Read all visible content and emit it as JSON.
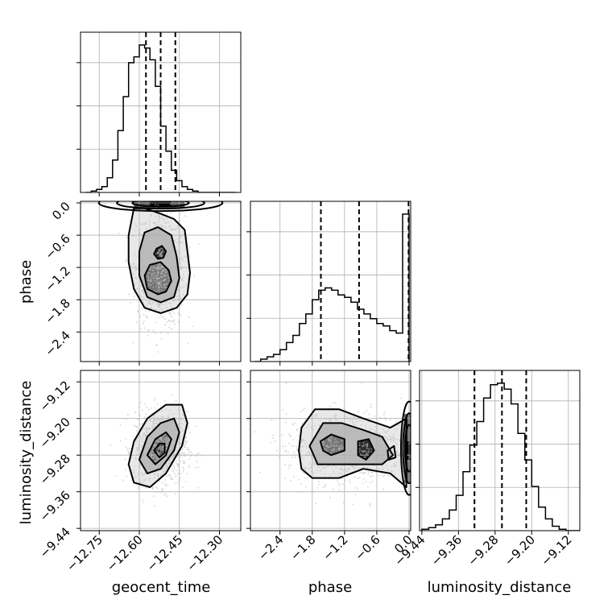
{
  "chart_data": {
    "type": "corner",
    "parameters": [
      "geocent_time",
      "phase",
      "luminosity_distance"
    ],
    "axis_labels": {
      "x": [
        "geocent_time",
        "phase",
        "luminosity_distance"
      ],
      "y": [
        "phase",
        "luminosity_distance"
      ]
    },
    "ranges": {
      "geocent_time": [
        -12.82,
        -12.22
      ],
      "phase": [
        -2.95,
        0.03
      ],
      "luminosity_distance": [
        -9.445,
        -9.095
      ]
    },
    "ticks": {
      "geocent_time": [
        {
          "v": -12.75,
          "label": "−12.75"
        },
        {
          "v": -12.6,
          "label": "−12.60"
        },
        {
          "v": -12.45,
          "label": "−12.45"
        },
        {
          "v": -12.3,
          "label": "−12.30"
        }
      ],
      "phase": [
        {
          "v": -2.4,
          "label": "−2.4"
        },
        {
          "v": -1.8,
          "label": "−1.8"
        },
        {
          "v": -1.2,
          "label": "−1.2"
        },
        {
          "v": -0.6,
          "label": "−0.6"
        },
        {
          "v": 0.0,
          "label": "0.0"
        }
      ],
      "luminosity_distance": [
        {
          "v": -9.44,
          "label": "−9.44"
        },
        {
          "v": -9.36,
          "label": "−9.36"
        },
        {
          "v": -9.28,
          "label": "−9.28"
        },
        {
          "v": -9.2,
          "label": "−9.20"
        },
        {
          "v": -9.12,
          "label": "−9.12"
        }
      ]
    },
    "quantiles": {
      "geocent_time": [
        -12.575,
        -12.52,
        -12.465
      ],
      "phase": [
        -1.64,
        -0.93,
        -0.01
      ],
      "luminosity_distance": [
        -9.325,
        -9.265,
        -9.212
      ]
    },
    "histograms": {
      "geocent_time": {
        "edges": [
          -12.8,
          -12.78,
          -12.76,
          -12.74,
          -12.72,
          -12.7,
          -12.68,
          -12.66,
          -12.64,
          -12.62,
          -12.6,
          -12.58,
          -12.56,
          -12.54,
          -12.52,
          -12.5,
          -12.48,
          -12.46,
          -12.44,
          -12.42,
          -12.4,
          -12.38,
          -12.36,
          -12.34,
          -12.32,
          -12.3,
          -12.28,
          -12.26,
          -12.24
        ],
        "counts": [
          0,
          1,
          2,
          4,
          10,
          22,
          42,
          65,
          88,
          92,
          100,
          98,
          90,
          72,
          45,
          28,
          15,
          8,
          4,
          2,
          1,
          0,
          0,
          0,
          0,
          0,
          0,
          0
        ]
      },
      "phase": {
        "edges": [
          -2.88,
          -2.76,
          -2.64,
          -2.52,
          -2.4,
          -2.28,
          -2.16,
          -2.04,
          -1.92,
          -1.8,
          -1.68,
          -1.56,
          -1.44,
          -1.32,
          -1.2,
          -1.08,
          -0.96,
          -0.84,
          -0.72,
          -0.6,
          -0.48,
          -0.36,
          -0.24,
          -0.12,
          0.0
        ],
        "counts": [
          0,
          1,
          2,
          3,
          5,
          8,
          11,
          16,
          20,
          26,
          30,
          31,
          30,
          28,
          27,
          25,
          22,
          20,
          18,
          16,
          15,
          13,
          12,
          62
        ]
      },
      "luminosity_distance": {
        "edges": [
          -9.44,
          -9.425,
          -9.41,
          -9.395,
          -9.38,
          -9.365,
          -9.35,
          -9.335,
          -9.32,
          -9.305,
          -9.29,
          -9.275,
          -9.26,
          -9.245,
          -9.23,
          -9.215,
          -9.2,
          -9.185,
          -9.17,
          -9.155,
          -9.14,
          -9.125,
          -9.11,
          -9.095
        ],
        "counts": [
          1,
          2,
          4,
          8,
          14,
          24,
          40,
          58,
          74,
          90,
          99,
          100,
          96,
          86,
          66,
          48,
          30,
          16,
          8,
          3,
          1,
          0,
          0
        ]
      }
    },
    "contours": {
      "phase_vs_geocent_time": {
        "scatter_center": [
          -12.52,
          -1.2
        ],
        "scatter_spread": [
          0.045,
          0.55
        ],
        "levels": [
          [
            [
              -12.62,
              -0.1
            ],
            [
              -12.58,
              -0.1
            ],
            [
              -12.52,
              -0.2
            ],
            [
              -12.47,
              -0.3
            ],
            [
              -12.43,
              -0.5
            ],
            [
              -12.42,
              -0.9
            ],
            [
              -12.41,
              -1.3
            ],
            [
              -12.42,
              -1.7
            ],
            [
              -12.46,
              -1.95
            ],
            [
              -12.52,
              -2.05
            ],
            [
              -12.58,
              -1.95
            ],
            [
              -12.62,
              -1.6
            ],
            [
              -12.64,
              -1.1
            ],
            [
              -12.64,
              -0.6
            ]
          ],
          [
            [
              -12.58,
              -0.55
            ],
            [
              -12.53,
              -0.45
            ],
            [
              -12.48,
              -0.6
            ],
            [
              -12.46,
              -1.0
            ],
            [
              -12.45,
              -1.4
            ],
            [
              -12.47,
              -1.75
            ],
            [
              -12.52,
              -1.85
            ],
            [
              -12.57,
              -1.75
            ],
            [
              -12.6,
              -1.35
            ],
            [
              -12.6,
              -0.9
            ]
          ],
          [
            [
              -12.56,
              -1.15
            ],
            [
              -12.52,
              -1.1
            ],
            [
              -12.49,
              -1.25
            ],
            [
              -12.48,
              -1.45
            ],
            [
              -12.5,
              -1.65
            ],
            [
              -12.53,
              -1.7
            ],
            [
              -12.57,
              -1.6
            ],
            [
              -12.58,
              -1.35
            ]
          ],
          [
            [
              -12.535,
              -0.85
            ],
            [
              -12.515,
              -0.8
            ],
            [
              -12.5,
              -0.9
            ],
            [
              -12.51,
              -1.02
            ],
            [
              -12.53,
              -1.04
            ],
            [
              -12.545,
              -0.95
            ]
          ]
        ],
        "band_y": 0.0
      },
      "luminosity_distance_vs_geocent_time": {
        "scatter_center": [
          -12.52,
          -9.265
        ],
        "scatter_spread": [
          0.05,
          0.04
        ],
        "levels": [
          [
            [
              -12.64,
              -9.3
            ],
            [
              -12.62,
              -9.25
            ],
            [
              -12.57,
              -9.2
            ],
            [
              -12.5,
              -9.17
            ],
            [
              -12.44,
              -9.17
            ],
            [
              -12.42,
              -9.21
            ],
            [
              -12.44,
              -9.26
            ],
            [
              -12.5,
              -9.32
            ],
            [
              -12.56,
              -9.35
            ],
            [
              -12.62,
              -9.34
            ]
          ],
          [
            [
              -12.6,
              -9.29
            ],
            [
              -12.57,
              -9.24
            ],
            [
              -12.52,
              -9.21
            ],
            [
              -12.47,
              -9.2
            ],
            [
              -12.45,
              -9.23
            ],
            [
              -12.47,
              -9.27
            ],
            [
              -12.52,
              -9.31
            ],
            [
              -12.57,
              -9.32
            ]
          ],
          [
            [
              -12.57,
              -9.28
            ],
            [
              -12.54,
              -9.245
            ],
            [
              -12.5,
              -9.23
            ],
            [
              -12.48,
              -9.245
            ],
            [
              -12.5,
              -9.28
            ],
            [
              -12.54,
              -9.3
            ]
          ],
          [
            [
              -12.545,
              -9.27
            ],
            [
              -12.525,
              -9.255
            ],
            [
              -12.505,
              -9.255
            ],
            [
              -12.505,
              -9.275
            ],
            [
              -12.525,
              -9.285
            ]
          ]
        ]
      },
      "luminosity_distance_vs_phase": {
        "scatter_center": [
          -1.1,
          -9.265
        ],
        "scatter_spread": [
          0.6,
          0.04
        ],
        "levels": [
          [
            [
              -2.05,
              -9.27
            ],
            [
              -2.0,
              -9.22
            ],
            [
              -1.75,
              -9.18
            ],
            [
              -1.3,
              -9.18
            ],
            [
              -0.85,
              -9.2
            ],
            [
              -0.35,
              -9.22
            ],
            [
              -0.05,
              -9.2
            ],
            [
              -0.05,
              -9.35
            ],
            [
              -0.35,
              -9.32
            ],
            [
              -0.85,
              -9.31
            ],
            [
              -1.3,
              -9.33
            ],
            [
              -1.8,
              -9.33
            ],
            [
              -2.0,
              -9.31
            ]
          ],
          [
            [
              -1.85,
              -9.26
            ],
            [
              -1.6,
              -9.21
            ],
            [
              -1.25,
              -9.21
            ],
            [
              -0.85,
              -9.225
            ],
            [
              -0.5,
              -9.24
            ],
            [
              -0.3,
              -9.28
            ],
            [
              -0.5,
              -9.3
            ],
            [
              -0.85,
              -9.3
            ],
            [
              -1.3,
              -9.3
            ],
            [
              -1.7,
              -9.3
            ]
          ],
          [
            [
              -1.65,
              -9.25
            ],
            [
              -1.45,
              -9.235
            ],
            [
              -1.2,
              -9.245
            ],
            [
              -1.2,
              -9.27
            ],
            [
              -1.45,
              -9.28
            ],
            [
              -1.6,
              -9.27
            ]
          ],
          [
            [
              -0.95,
              -9.25
            ],
            [
              -0.75,
              -9.245
            ],
            [
              -0.65,
              -9.27
            ],
            [
              -0.8,
              -9.29
            ],
            [
              -0.95,
              -9.28
            ]
          ],
          [
            [
              -0.4,
              -9.27
            ],
            [
              -0.28,
              -9.26
            ],
            [
              -0.25,
              -9.285
            ],
            [
              -0.38,
              -9.29
            ]
          ]
        ],
        "band_x": 0.0
      }
    },
    "grid": true,
    "legend": "none"
  }
}
